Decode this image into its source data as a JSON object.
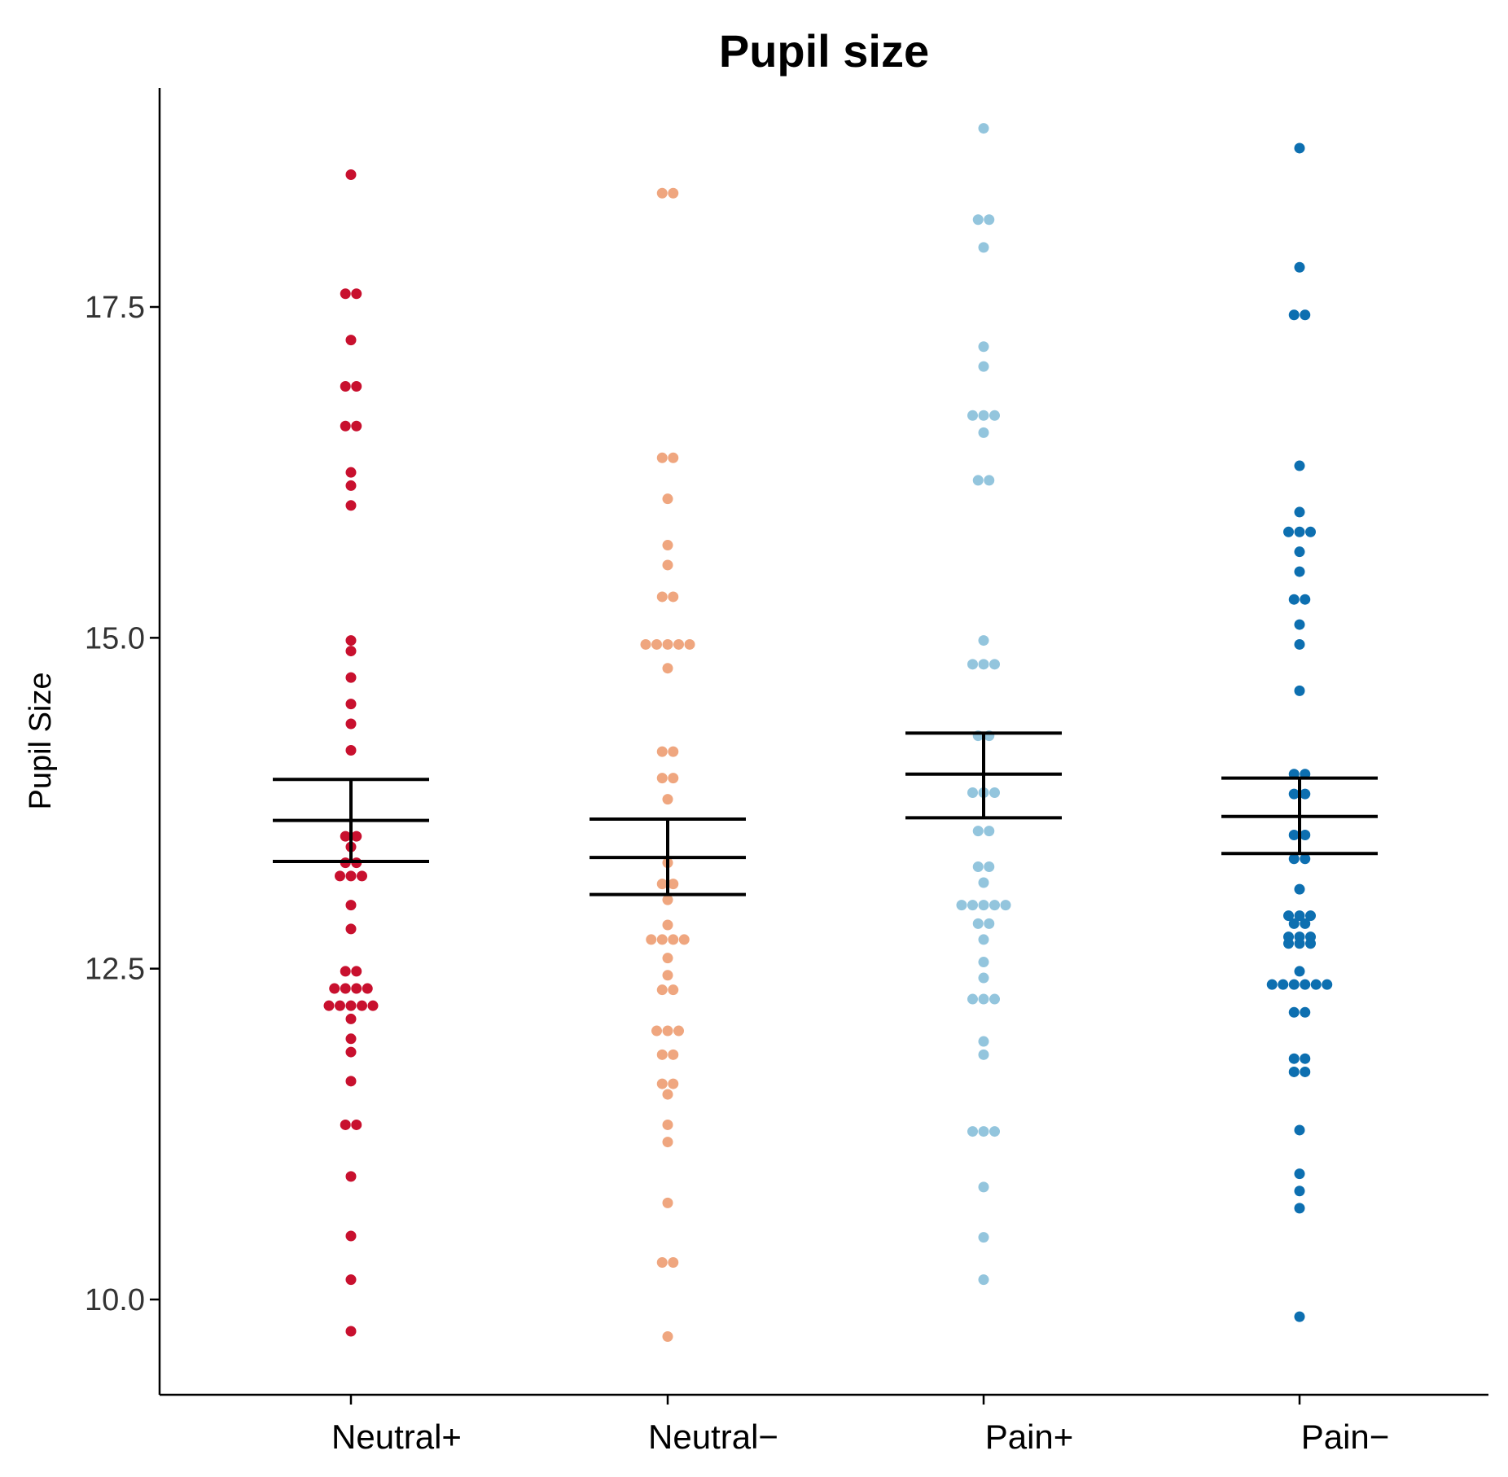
{
  "chart_data": {
    "type": "scatter",
    "subtype": "dot-plot with mean and error bars",
    "title": "Pupil size",
    "xlabel": "",
    "ylabel": "Pupil Size",
    "ylim": [
      9.3,
      19.2
    ],
    "yticks": [
      10.0,
      12.5,
      15.0,
      17.5
    ],
    "ytick_labels": [
      "10.0",
      "12.5",
      "15.0",
      "17.5"
    ],
    "categories": [
      "Neutral+",
      "Neutral−",
      "Pain+",
      "Pain−"
    ],
    "grid": false,
    "legend": "none",
    "series": [
      {
        "name": "Neutral+",
        "color": "#c8102e",
        "mean": 13.62,
        "ci_low": 13.31,
        "ci_high": 13.93,
        "values": [
          18.5,
          17.6,
          17.6,
          17.25,
          16.9,
          16.9,
          16.6,
          16.6,
          16.25,
          16.15,
          16.0,
          14.98,
          14.9,
          14.7,
          14.5,
          14.35,
          14.15,
          13.5,
          13.45,
          13.42,
          13.3,
          13.25,
          13.2,
          13.2,
          12.98,
          12.8,
          12.48,
          12.45,
          12.38,
          12.35,
          12.32,
          12.25,
          12.22,
          12.2,
          12.18,
          12.15,
          12.12,
          11.97,
          11.87,
          11.65,
          11.33,
          11.3,
          10.93,
          10.48,
          10.15,
          9.76
        ],
        "rows": [
          [
            18.5,
            1
          ],
          [
            17.6,
            2
          ],
          [
            17.25,
            1
          ],
          [
            16.9,
            2
          ],
          [
            16.6,
            2
          ],
          [
            16.25,
            1
          ],
          [
            16.15,
            1
          ],
          [
            16.0,
            1
          ],
          [
            14.98,
            1
          ],
          [
            14.9,
            1
          ],
          [
            14.7,
            1
          ],
          [
            14.5,
            1
          ],
          [
            14.35,
            1
          ],
          [
            14.15,
            1
          ],
          [
            13.5,
            2
          ],
          [
            13.42,
            1
          ],
          [
            13.3,
            2
          ],
          [
            13.2,
            3
          ],
          [
            12.98,
            1
          ],
          [
            12.8,
            1
          ],
          [
            12.48,
            2
          ],
          [
            12.35,
            4
          ],
          [
            12.22,
            5
          ],
          [
            12.12,
            1
          ],
          [
            11.97,
            1
          ],
          [
            11.87,
            1
          ],
          [
            11.65,
            1
          ],
          [
            11.32,
            2
          ],
          [
            10.93,
            1
          ],
          [
            10.48,
            1
          ],
          [
            10.15,
            1
          ],
          [
            9.76,
            1
          ]
        ]
      },
      {
        "name": "Neutral−",
        "color": "#efa67f",
        "mean": 13.34,
        "ci_low": 13.06,
        "ci_high": 13.63,
        "values": [
          18.37,
          18.35,
          16.38,
          16.35,
          16.05,
          15.7,
          15.55,
          15.33,
          15.3,
          14.98,
          14.96,
          14.95,
          14.93,
          14.9,
          14.77,
          14.15,
          14.13,
          13.95,
          13.93,
          13.78,
          13.3,
          13.15,
          13.14,
          13.02,
          12.83,
          12.77,
          12.72,
          12.7,
          12.68,
          12.58,
          12.45,
          12.35,
          12.33,
          12.05,
          12.03,
          12.02,
          11.85,
          11.84,
          11.64,
          11.62,
          11.55,
          11.32,
          11.19,
          10.73,
          10.3,
          10.25,
          9.72
        ],
        "rows": [
          [
            18.36,
            2
          ],
          [
            16.36,
            2
          ],
          [
            16.05,
            1
          ],
          [
            15.7,
            1
          ],
          [
            15.55,
            1
          ],
          [
            15.31,
            2
          ],
          [
            14.95,
            5
          ],
          [
            14.77,
            1
          ],
          [
            14.14,
            2
          ],
          [
            13.94,
            2
          ],
          [
            13.78,
            1
          ],
          [
            13.3,
            1
          ],
          [
            13.14,
            2
          ],
          [
            13.02,
            1
          ],
          [
            12.83,
            1
          ],
          [
            12.72,
            4
          ],
          [
            12.58,
            1
          ],
          [
            12.45,
            1
          ],
          [
            12.34,
            2
          ],
          [
            12.03,
            3
          ],
          [
            11.85,
            2
          ],
          [
            11.63,
            2
          ],
          [
            11.55,
            1
          ],
          [
            11.32,
            1
          ],
          [
            11.19,
            1
          ],
          [
            10.73,
            1
          ],
          [
            10.28,
            2
          ],
          [
            9.72,
            1
          ]
        ]
      },
      {
        "name": "Pain+",
        "color": "#93c5dd",
        "mean": 13.97,
        "ci_low": 13.64,
        "ci_high": 14.28,
        "values": [
          18.85,
          18.2,
          18.12,
          17.95,
          17.2,
          17.05,
          16.7,
          16.68,
          16.65,
          16.55,
          16.2,
          16.18,
          14.98,
          14.82,
          14.78,
          14.75,
          14.27,
          14.25,
          13.85,
          13.83,
          13.8,
          13.55,
          13.52,
          13.28,
          13.25,
          13.15,
          13.03,
          13.0,
          12.98,
          12.95,
          12.92,
          12.85,
          12.82,
          12.72,
          12.55,
          12.43,
          12.3,
          12.27,
          12.22,
          11.95,
          11.85,
          11.3,
          11.27,
          11.25,
          10.85,
          10.47,
          10.15
        ],
        "rows": [
          [
            18.85,
            1
          ],
          [
            18.16,
            2
          ],
          [
            17.95,
            1
          ],
          [
            17.2,
            1
          ],
          [
            17.05,
            1
          ],
          [
            16.68,
            3
          ],
          [
            16.55,
            1
          ],
          [
            16.19,
            2
          ],
          [
            14.98,
            1
          ],
          [
            14.8,
            3
          ],
          [
            14.26,
            2
          ],
          [
            13.83,
            3
          ],
          [
            13.54,
            2
          ],
          [
            13.27,
            2
          ],
          [
            13.15,
            1
          ],
          [
            12.98,
            5
          ],
          [
            12.84,
            2
          ],
          [
            12.72,
            1
          ],
          [
            12.55,
            1
          ],
          [
            12.43,
            1
          ],
          [
            12.27,
            3
          ],
          [
            11.95,
            1
          ],
          [
            11.85,
            1
          ],
          [
            11.27,
            3
          ],
          [
            10.85,
            1
          ],
          [
            10.47,
            1
          ],
          [
            10.15,
            1
          ]
        ]
      },
      {
        "name": "Pain−",
        "color": "#0d6fb0",
        "mean": 13.65,
        "ci_low": 13.37,
        "ci_high": 13.94,
        "values": [
          18.7,
          17.8,
          17.45,
          17.43,
          16.3,
          15.95,
          15.82,
          15.8,
          15.78,
          15.65,
          15.5,
          15.3,
          15.28,
          15.1,
          14.95,
          14.6,
          13.98,
          13.96,
          13.83,
          13.81,
          13.52,
          13.5,
          13.35,
          13.32,
          13.1,
          12.93,
          12.9,
          12.88,
          12.86,
          12.84,
          12.8,
          12.75,
          12.74,
          12.72,
          12.7,
          12.68,
          12.48,
          12.42,
          12.4,
          12.38,
          12.36,
          12.34,
          12.3,
          12.18,
          12.16,
          11.83,
          11.8,
          11.73,
          11.7,
          11.28,
          10.95,
          10.82,
          10.69,
          9.87
        ],
        "rows": [
          [
            18.7,
            1
          ],
          [
            17.8,
            1
          ],
          [
            17.44,
            2
          ],
          [
            16.3,
            1
          ],
          [
            15.95,
            1
          ],
          [
            15.8,
            3
          ],
          [
            15.65,
            1
          ],
          [
            15.5,
            1
          ],
          [
            15.29,
            2
          ],
          [
            15.1,
            1
          ],
          [
            14.95,
            1
          ],
          [
            14.6,
            1
          ],
          [
            13.97,
            2
          ],
          [
            13.82,
            2
          ],
          [
            13.51,
            2
          ],
          [
            13.33,
            2
          ],
          [
            13.1,
            1
          ],
          [
            12.9,
            3
          ],
          [
            12.84,
            2
          ],
          [
            12.74,
            3
          ],
          [
            12.69,
            3
          ],
          [
            12.48,
            1
          ],
          [
            12.38,
            6
          ],
          [
            12.17,
            2
          ],
          [
            11.82,
            2
          ],
          [
            11.72,
            2
          ],
          [
            11.28,
            1
          ],
          [
            10.95,
            1
          ],
          [
            10.82,
            1
          ],
          [
            10.69,
            1
          ],
          [
            9.87,
            1
          ]
        ]
      }
    ]
  }
}
